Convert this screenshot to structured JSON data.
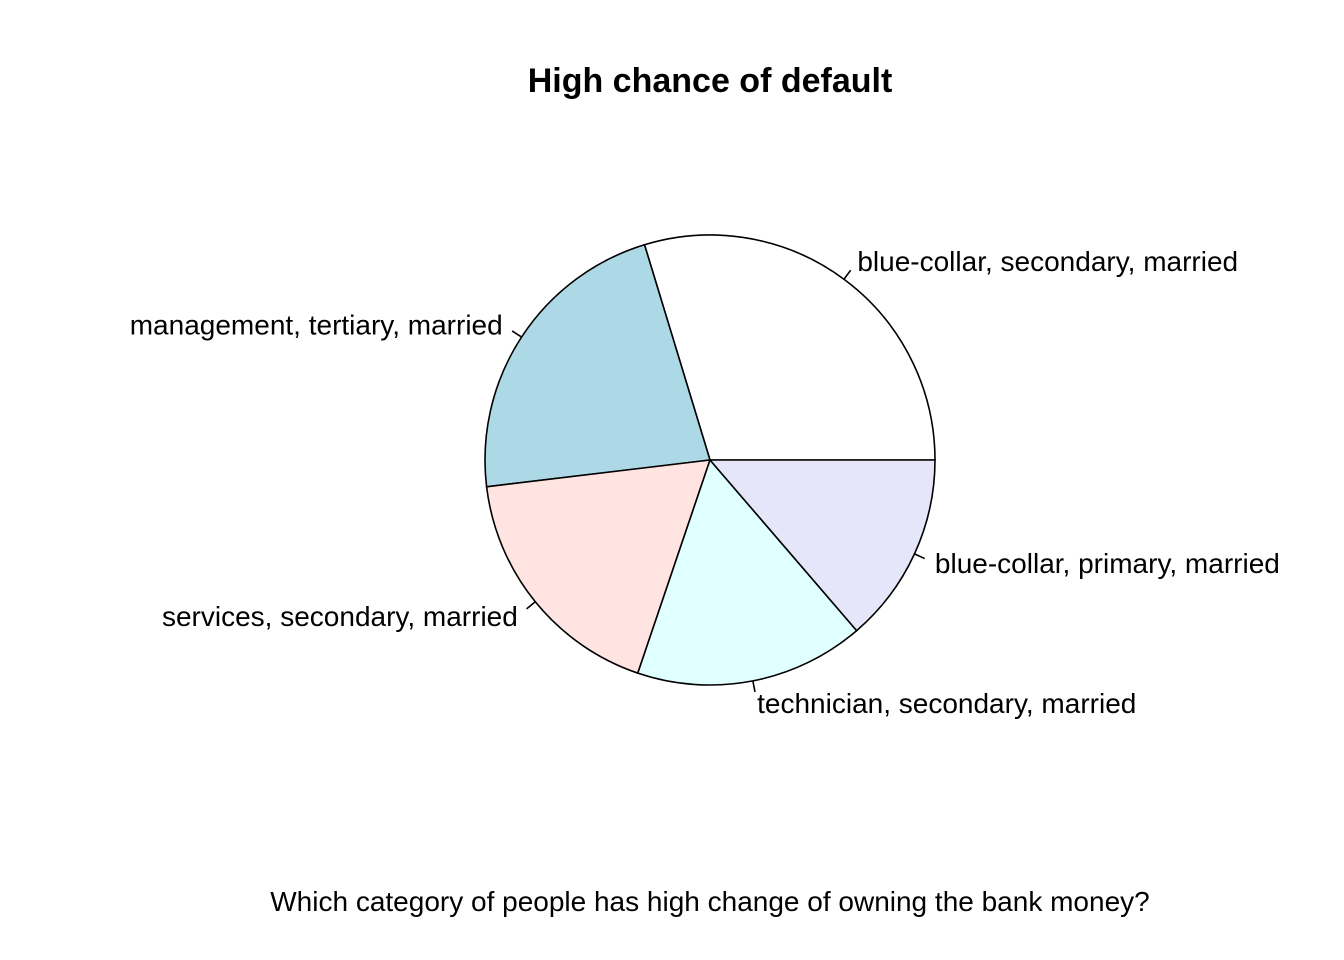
{
  "chart_data": {
    "type": "pie",
    "title": "High chance of default",
    "xlabel": "Which category of people has high change of owning the bank money?",
    "slices": [
      {
        "label": "blue-collar, secondary, married",
        "value": 29.7,
        "color": "#ffffff"
      },
      {
        "label": "management, tertiary, married",
        "value": 22.2,
        "color": "#add8e6"
      },
      {
        "label": "services, secondary, married",
        "value": 17.9,
        "color": "#ffe4e1"
      },
      {
        "label": "technician, secondary, married",
        "value": 16.5,
        "color": "#e0ffff"
      },
      {
        "label": "blue-collar, primary, married",
        "value": 13.7,
        "color": "#e6e6fa"
      }
    ],
    "start_angle_deg": 0,
    "direction": "counterclockwise"
  }
}
